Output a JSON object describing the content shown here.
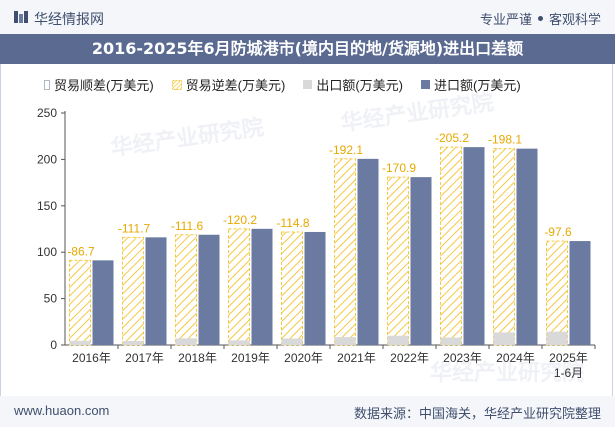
{
  "header": {
    "brand": "华经情报网",
    "slogan_left": "专业严谨",
    "slogan_right": "客观科学"
  },
  "title": "2016-2025年6月防城港市(境内目的地/货源地)进出口差额",
  "legend": {
    "surplus": "贸易顺差(万美元)",
    "deficit": "贸易逆差(万美元)",
    "export": "出口额(万美元)",
    "import": "进口额(万美元)"
  },
  "colors": {
    "export": "#d9d9d9",
    "import": "#6a7aa0",
    "deficit_stroke": "#f5c842",
    "deficit_label": "#e8a800",
    "title_bg": "#5b6a91"
  },
  "chart_data": {
    "type": "bar",
    "categories": [
      "2016年",
      "2017年",
      "2018年",
      "2019年",
      "2020年",
      "2021年",
      "2022年",
      "2023年",
      "2024年",
      "2025年\n1-6月"
    ],
    "series": [
      {
        "name": "出口额(万美元)",
        "values": [
          4.5,
          4.3,
          7.2,
          5.0,
          7.0,
          8.5,
          10.0,
          8.0,
          13.5,
          14.4
        ]
      },
      {
        "name": "进口额(万美元)",
        "values": [
          91.2,
          116.0,
          118.8,
          125.2,
          121.8,
          200.6,
          180.9,
          213.2,
          211.6,
          112.0
        ]
      },
      {
        "name": "贸易逆差(万美元)",
        "values": [
          -86.7,
          -111.7,
          -111.6,
          -120.2,
          -114.8,
          -192.1,
          -170.9,
          -205.2,
          -198.1,
          -97.6
        ]
      }
    ],
    "deficit_labels": [
      "-86.7",
      "-111.7",
      "-111.6",
      "-120.2",
      "-114.8",
      "-192.1",
      "-170.9",
      "-205.2",
      "-198.1",
      "-97.6"
    ],
    "ylim": [
      0,
      250
    ],
    "yticks": [
      0,
      50,
      100,
      150,
      200,
      250
    ]
  },
  "footer": {
    "website": "www.huaon.com",
    "source": "数据来源：中国海关，华经产业研究院整理"
  },
  "watermark": "华经产业研究院"
}
